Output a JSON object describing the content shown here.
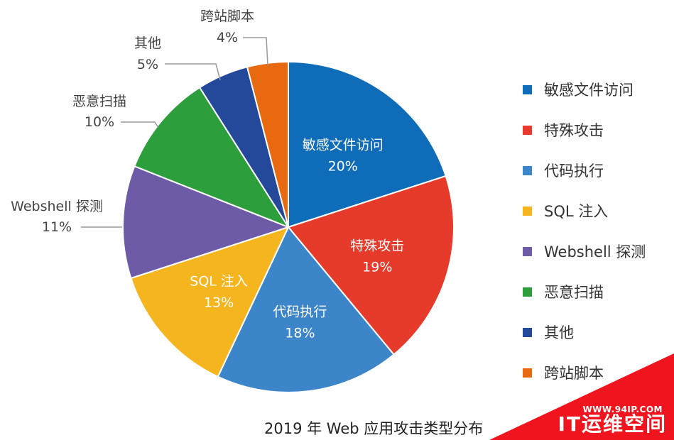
{
  "chart_data": {
    "type": "pie",
    "title": "2019 年 Web 应用攻击类型分布",
    "slices": [
      {
        "label": "敏感文件访问",
        "value": 20,
        "display": "20%",
        "color": "#0f6cb8"
      },
      {
        "label": "特殊攻击",
        "value": 19,
        "display": "19%",
        "color": "#e63a2a"
      },
      {
        "label": "代码执行",
        "value": 18,
        "display": "18%",
        "color": "#3c85c9"
      },
      {
        "label": "SQL 注入",
        "value": 13,
        "display": "13%",
        "color": "#f5b51e"
      },
      {
        "label": "Webshell 探测",
        "value": 11,
        "display": "11%",
        "color": "#6d5ba7"
      },
      {
        "label": "恶意扫描",
        "value": 10,
        "display": "10%",
        "color": "#2c9e3c"
      },
      {
        "label": "其他",
        "value": 5,
        "display": "5%",
        "color": "#24489a"
      },
      {
        "label": "跨站脚本",
        "value": 4,
        "display": "4%",
        "color": "#e8690f"
      }
    ],
    "legend_position": "right"
  },
  "watermark": {
    "url": "WWW.94IP.COM",
    "brand": "IT运维空间",
    "color": "#f0141e"
  }
}
